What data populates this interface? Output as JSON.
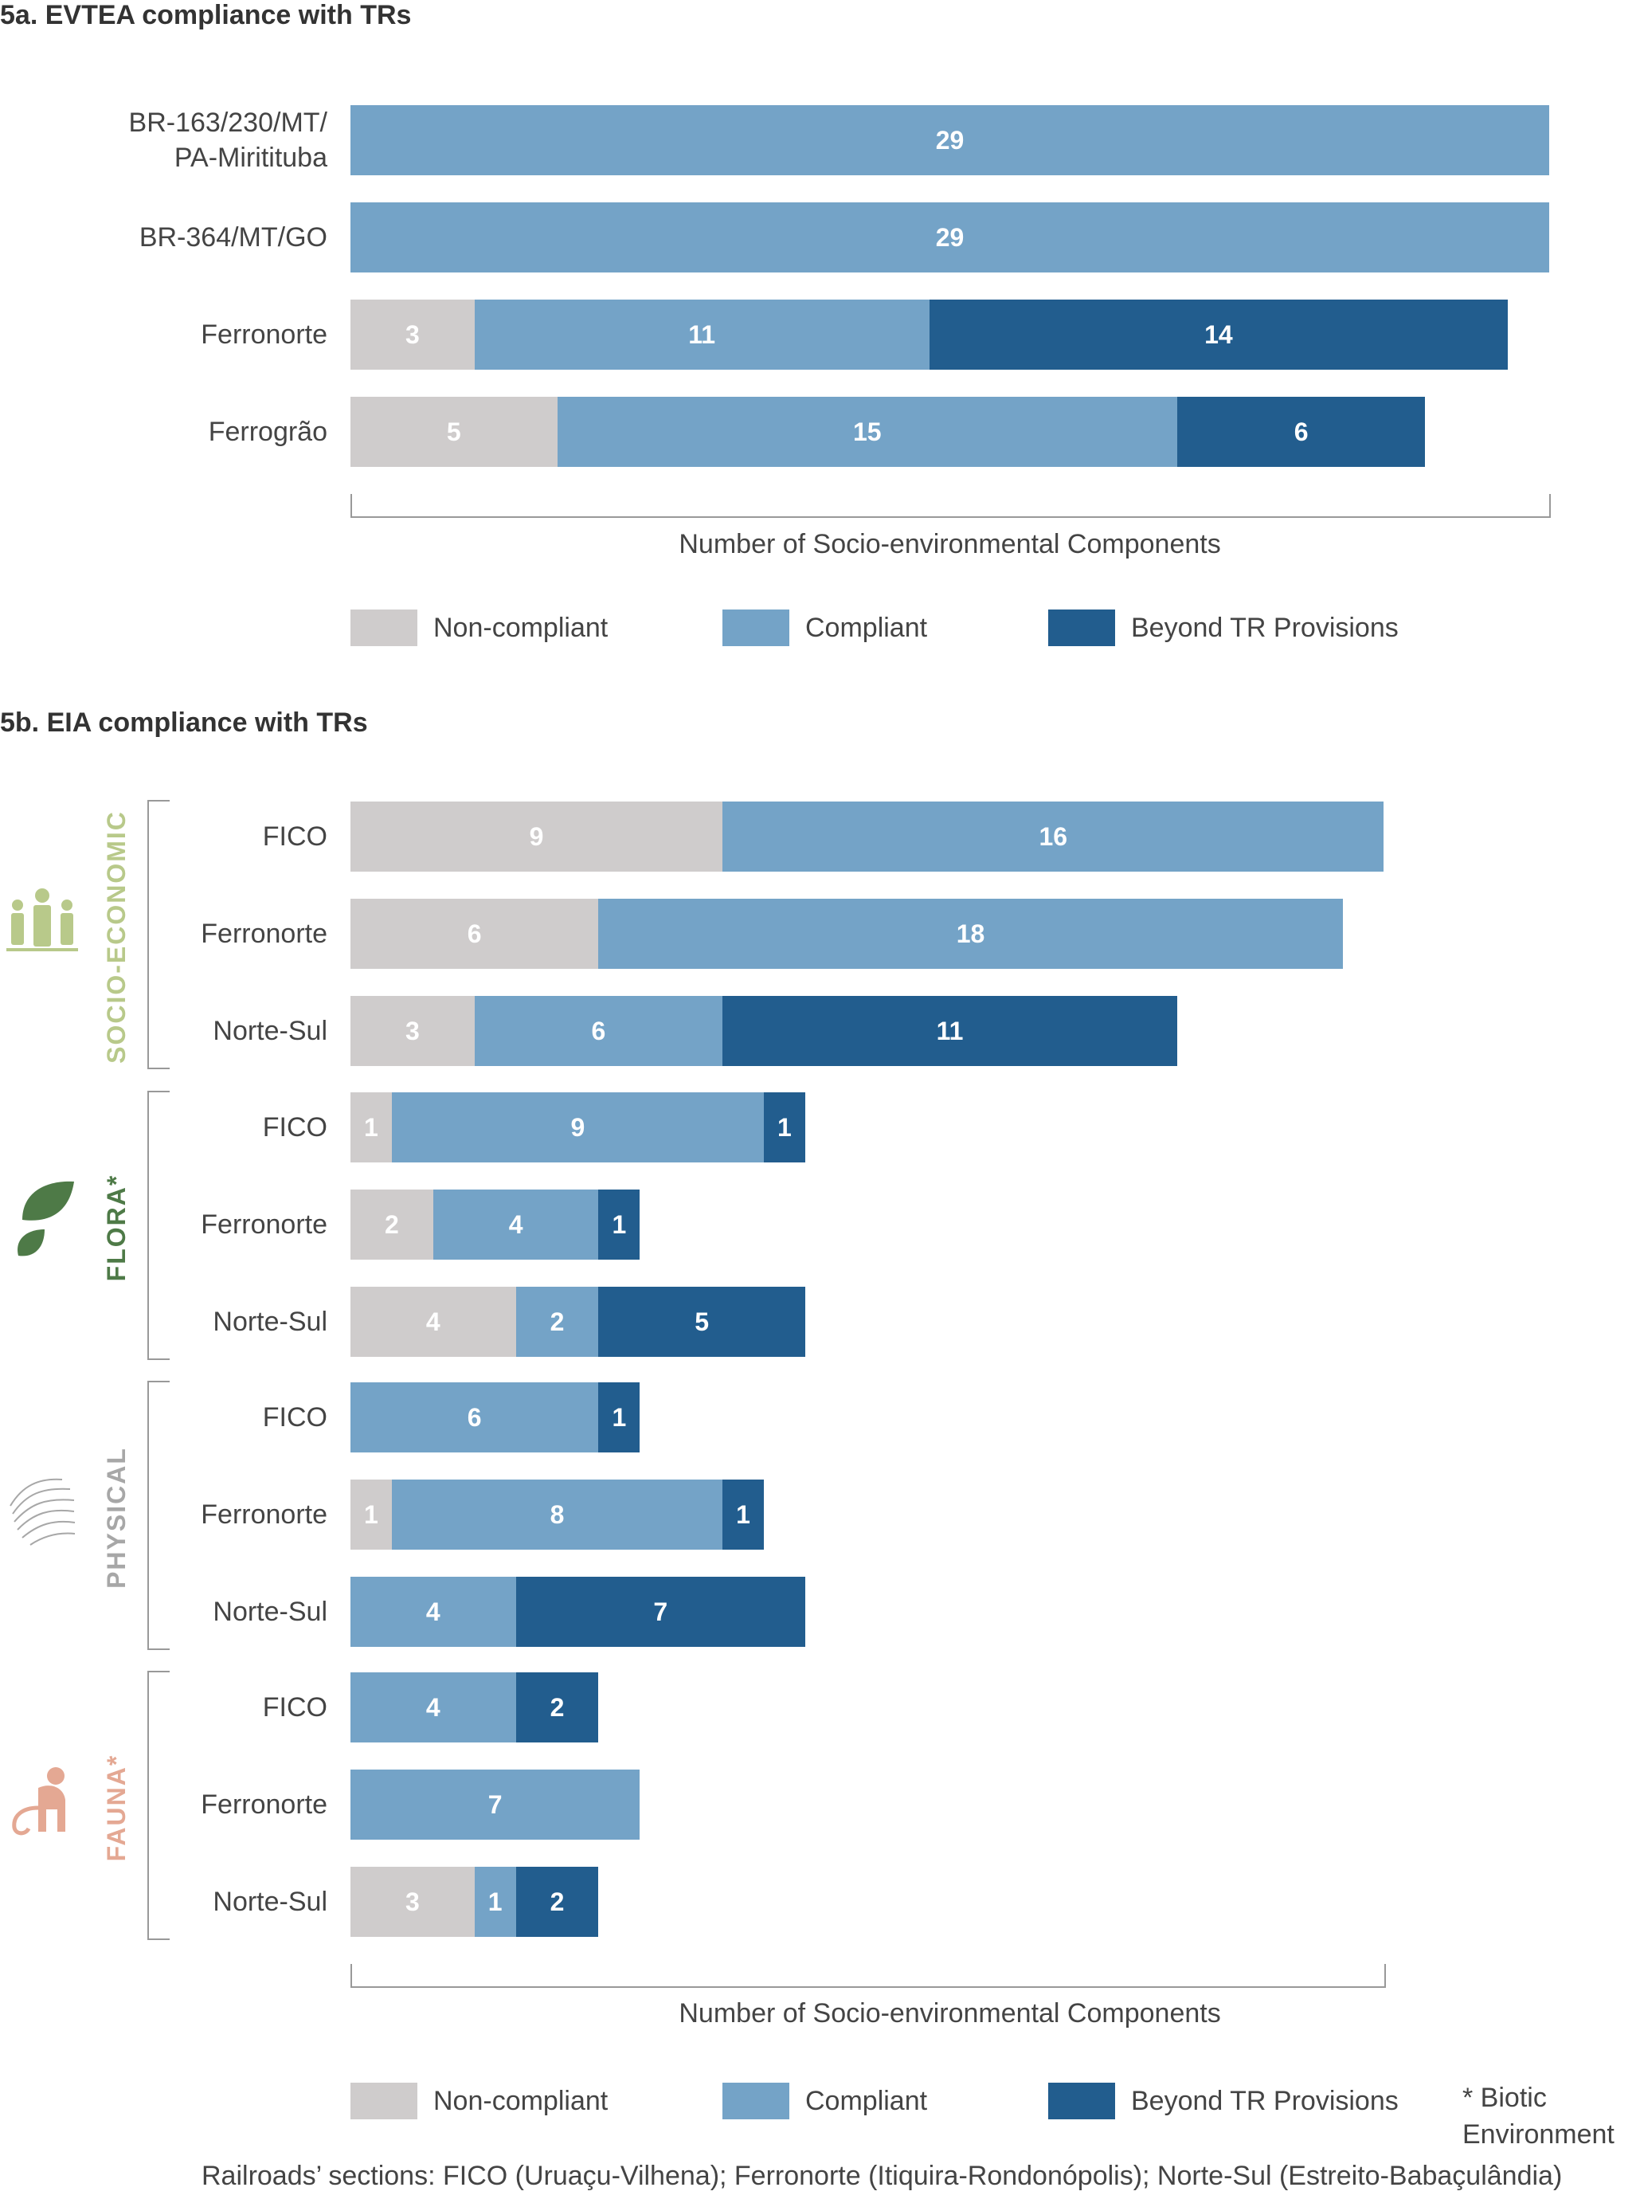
{
  "colors": {
    "non_compliant": "#cfcccc",
    "compliant": "#74a3c7",
    "beyond": "#225d8e",
    "socio": "#b8c98a",
    "flora": "#4e7a47",
    "physical": "#a7a7a7",
    "fauna": "#e4a893"
  },
  "icons": {
    "socio": "people-icon",
    "flora": "leaf-icon",
    "physical": "terrain-icon",
    "fauna": "monkey-icon"
  },
  "chart_data": [
    {
      "type": "bar",
      "orientation": "horizontal",
      "stacked": true,
      "title": "5a. EVTEA compliance with TRs",
      "xlabel": "Number of Socio-environmental Components",
      "categories": [
        "BR-163/230/MT/\nPA-Miritituba",
        "BR-364/MT/GO",
        "Ferronorte",
        "Ferrogrão"
      ],
      "series": [
        {
          "name": "Non-compliant",
          "values": [
            0,
            0,
            3,
            5
          ]
        },
        {
          "name": "Compliant",
          "values": [
            29,
            29,
            11,
            15
          ]
        },
        {
          "name": "Beyond TR Provisions",
          "values": [
            0,
            0,
            14,
            6
          ]
        }
      ]
    },
    {
      "type": "bar",
      "orientation": "horizontal",
      "stacked": true,
      "title": "5b. EIA compliance with TRs",
      "xlabel": "Number of Socio-environmental Components",
      "groups": [
        {
          "label": "SOCIO-ECONOMIC",
          "key": "socio",
          "categories": [
            "FICO",
            "Ferronorte",
            "Norte-Sul"
          ]
        },
        {
          "label": "FLORA*",
          "key": "flora",
          "categories": [
            "FICO",
            "Ferronorte",
            "Norte-Sul"
          ]
        },
        {
          "label": "PHYSICAL",
          "key": "physical",
          "categories": [
            "FICO",
            "Ferronorte",
            "Norte-Sul"
          ]
        },
        {
          "label": "FAUNA*",
          "key": "fauna",
          "categories": [
            "FICO",
            "Ferronorte",
            "Norte-Sul"
          ]
        }
      ],
      "series": [
        {
          "name": "Non-compliant",
          "values": [
            9,
            6,
            3,
            1,
            2,
            4,
            0,
            1,
            0,
            0,
            0,
            3
          ]
        },
        {
          "name": "Compliant",
          "values": [
            16,
            18,
            6,
            9,
            4,
            2,
            6,
            8,
            4,
            4,
            7,
            1
          ]
        },
        {
          "name": "Beyond TR Provisions",
          "values": [
            0,
            0,
            11,
            1,
            1,
            5,
            1,
            1,
            7,
            2,
            0,
            2
          ]
        }
      ],
      "footnote": "* Biotic\nEnvironment",
      "note": "Railroads’ sections: FICO (Uruaçu-Vilhena); Ferronorte (Itiquira-Rondonópolis); Norte-Sul (Estreito-Babaçulândia)"
    }
  ]
}
